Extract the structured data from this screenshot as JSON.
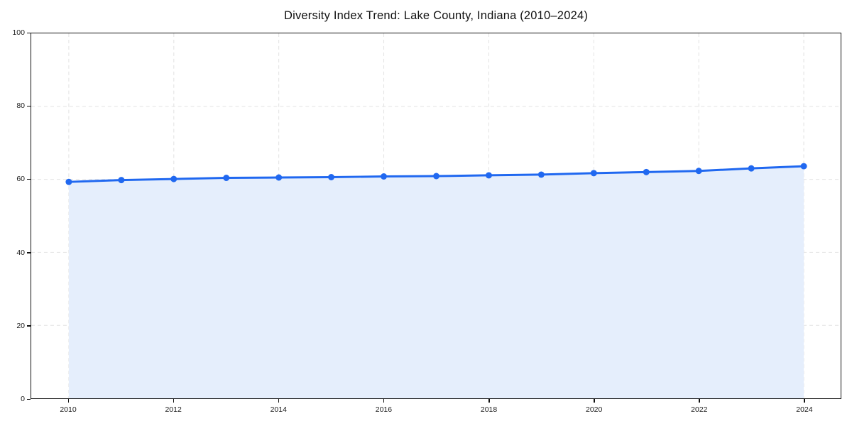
{
  "chart_data": {
    "type": "area",
    "title": "Diversity Index Trend: Lake County, Indiana (2010–2024)",
    "x": [
      2010,
      2011,
      2012,
      2013,
      2014,
      2015,
      2016,
      2017,
      2018,
      2019,
      2020,
      2021,
      2022,
      2023,
      2024
    ],
    "values": [
      59.3,
      59.8,
      60.1,
      60.4,
      60.5,
      60.6,
      60.8,
      60.9,
      61.1,
      61.3,
      61.7,
      62.0,
      62.3,
      63.0,
      63.6
    ],
    "xlabel": "",
    "ylabel": "",
    "ylim": [
      0,
      100
    ],
    "yticks": [
      0,
      20,
      40,
      60,
      80,
      100
    ],
    "xticks": [
      2010,
      2012,
      2014,
      2016,
      2018,
      2020,
      2022,
      2024
    ],
    "grid": "dashed",
    "legend": "none",
    "colors": {
      "line": "#2068f0",
      "marker": "#2068f0",
      "fill": "#e5eefc",
      "gridline": "#e2e2e2",
      "axis": "#111111",
      "text": "#1a1a1a"
    },
    "marker_shape": "circle"
  }
}
